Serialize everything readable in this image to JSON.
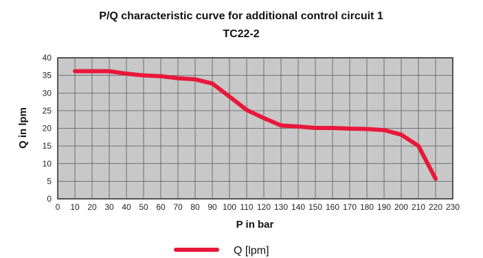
{
  "chart_data": {
    "type": "line",
    "title": "P/Q characteristic curve for additional control circuit 1",
    "subtitle": "TC22-2",
    "xlabel": "P in bar",
    "ylabel": "Q in lpm",
    "xlim": [
      0,
      230
    ],
    "ylim": [
      0,
      40
    ],
    "x_ticks": [
      "0",
      "10",
      "20",
      "30",
      "40",
      "50",
      "60",
      "70",
      "80",
      "90",
      "100",
      "110",
      "120",
      "130",
      "140",
      "150",
      "160",
      "170",
      "180",
      "190",
      "200",
      "210",
      "220",
      "230"
    ],
    "y_ticks": [
      "0",
      "5",
      "10",
      "15",
      "20",
      "25",
      "30",
      "35",
      "40"
    ],
    "grid": true,
    "legend_position": "bottom-center",
    "colors": {
      "series": "#e8183b",
      "plot_background": "#c8c8c8",
      "grid": "#555555"
    },
    "series": [
      {
        "name": "Q [lpm]",
        "x": [
          10,
          20,
          30,
          40,
          50,
          60,
          70,
          80,
          90,
          100,
          110,
          120,
          130,
          140,
          150,
          160,
          170,
          180,
          190,
          200,
          210,
          220
        ],
        "y": [
          36.2,
          36.2,
          36.2,
          35.5,
          35.0,
          34.8,
          34.2,
          33.9,
          32.7,
          29.0,
          25.2,
          22.9,
          20.8,
          20.5,
          20.1,
          20.1,
          19.9,
          19.8,
          19.5,
          18.2,
          15.0,
          5.7
        ]
      }
    ]
  }
}
